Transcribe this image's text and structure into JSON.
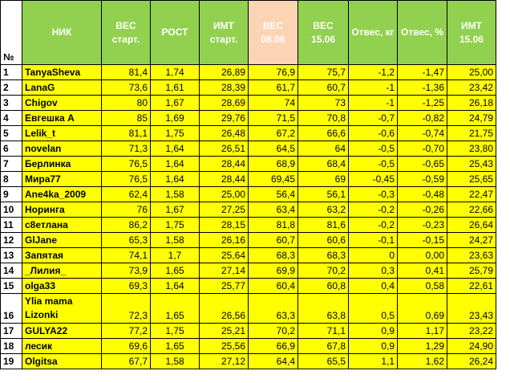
{
  "headers": {
    "num": "№",
    "nick": "НИК",
    "weight_start": "ВЕС старт.",
    "height": "РОСТ",
    "bmi_start": "ИМТ старт.",
    "weight_0806": "ВЕС 08.06",
    "weight_1506": "ВЕС 15.06",
    "loss_kg": "Отвес, кг",
    "loss_pct": "Отвес, %",
    "bmi_1506": "ИМТ 15.06"
  },
  "rows": [
    {
      "n": "1",
      "nick": "TanyaSheva",
      "ws": "81,4",
      "h": "1,74",
      "bmi0": "26,89",
      "w1": "76,9",
      "w2": "75,7",
      "kg": "-1,2",
      "pct": "-1,47",
      "bmi": "25,00"
    },
    {
      "n": "2",
      "nick": "LanaG",
      "ws": "73,6",
      "h": "1,61",
      "bmi0": "28,39",
      "w1": "61,7",
      "w2": "60,7",
      "kg": "-1",
      "pct": "-1,36",
      "bmi": "23,42"
    },
    {
      "n": "3",
      "nick": "Chigov",
      "ws": "80",
      "h": "1,67",
      "bmi0": "28,69",
      "w1": "74",
      "w2": "73",
      "kg": "-1",
      "pct": "-1,25",
      "bmi": "26,18"
    },
    {
      "n": "4",
      "nick": "Евгешка А",
      "ws": "85",
      "h": "1,69",
      "bmi0": "29,76",
      "w1": "71,5",
      "w2": "70,8",
      "kg": "-0,7",
      "pct": "-0,82",
      "bmi": "24,79"
    },
    {
      "n": "5",
      "nick": "Lelik_t",
      "ws": "81,1",
      "h": "1,75",
      "bmi0": "26,48",
      "w1": "67,2",
      "w2": "66,6",
      "kg": "-0,6",
      "pct": "-0,74",
      "bmi": "21,75"
    },
    {
      "n": "6",
      "nick": "novelan",
      "ws": "71,3",
      "h": "1,64",
      "bmi0": "26,51",
      "w1": "64,5",
      "w2": "64",
      "kg": "-0,5",
      "pct": "-0,70",
      "bmi": "23,80"
    },
    {
      "n": "7",
      "nick": "Берлинка",
      "ws": "76,5",
      "h": "1,64",
      "bmi0": "28,44",
      "w1": "68,9",
      "w2": "68,4",
      "kg": "-0,5",
      "pct": "-0,65",
      "bmi": "25,43"
    },
    {
      "n": "8",
      "nick": "Мира77",
      "ws": "76,5",
      "h": "1,64",
      "bmi0": "28,44",
      "w1": "69,45",
      "w2": "69",
      "kg": "-0,45",
      "pct": "-0,59",
      "bmi": "25,65"
    },
    {
      "n": "9",
      "nick": "Ane4ka_2009",
      "ws": "62,4",
      "h": "1,58",
      "bmi0": "25,00",
      "w1": "56,4",
      "w2": "56,1",
      "kg": "-0,3",
      "pct": "-0,48",
      "bmi": "22,47"
    },
    {
      "n": "10",
      "nick": "Норинга",
      "ws": "76",
      "h": "1,67",
      "bmi0": "27,25",
      "w1": "63,4",
      "w2": "63,2",
      "kg": "-0,2",
      "pct": "-0,26",
      "bmi": "22,66"
    },
    {
      "n": "11",
      "nick": "с8етлана",
      "ws": "86,2",
      "h": "1,75",
      "bmi0": "28,15",
      "w1": "81,8",
      "w2": "81,6",
      "kg": "-0,2",
      "pct": "-0,23",
      "bmi": "26,64"
    },
    {
      "n": "12",
      "nick": "GlJane",
      "ws": "65,3",
      "h": "1,58",
      "bmi0": "26,16",
      "w1": "60,7",
      "w2": "60,6",
      "kg": "-0,1",
      "pct": "-0,15",
      "bmi": "24,27"
    },
    {
      "n": "13",
      "nick": "Запятая",
      "ws": "74,1",
      "h": "1,7",
      "bmi0": "25,64",
      "w1": "68,3",
      "w2": "68,3",
      "kg": "0",
      "pct": "0,00",
      "bmi": "23,63"
    },
    {
      "n": "14",
      "nick": "_Лилия_",
      "ws": "73,9",
      "h": "1,65",
      "bmi0": "27,14",
      "w1": "69,9",
      "w2": "70,2",
      "kg": "0,3",
      "pct": "0,41",
      "bmi": "25,79"
    },
    {
      "n": "15",
      "nick": "olga33",
      "ws": "69,3",
      "h": "1,64",
      "bmi0": "25,77",
      "w1": "60,4",
      "w2": "60,8",
      "kg": "0,4",
      "pct": "0,58",
      "bmi": "22,61"
    },
    {
      "n": "16",
      "nick": "Ylia mama Lizonki",
      "ws": "72,3",
      "h": "1,65",
      "bmi0": "26,56",
      "w1": "63,3",
      "w2": "63,8",
      "kg": "0,5",
      "pct": "0,69",
      "bmi": "23,43",
      "tall": true
    },
    {
      "n": "17",
      "nick": "GULYA22",
      "ws": "77,2",
      "h": "1,75",
      "bmi0": "25,21",
      "w1": "70,2",
      "w2": "71,1",
      "kg": "0,9",
      "pct": "1,17",
      "bmi": "23,22"
    },
    {
      "n": "18",
      "nick": "лесик",
      "ws": "69,6",
      "h": "1,65",
      "bmi0": "25,56",
      "w1": "66,9",
      "w2": "67,8",
      "kg": "0,9",
      "pct": "1,29",
      "bmi": "24,90"
    },
    {
      "n": "19",
      "nick": "Olgitsa",
      "ws": "67,7",
      "h": "1,58",
      "bmi0": "27,12",
      "w1": "64,4",
      "w2": "65,5",
      "kg": "1,1",
      "pct": "1,62",
      "bmi": "26,24"
    }
  ],
  "colors": {
    "header_green": "#92d050",
    "header_peach": "#fbd4b4",
    "row_yellow": "#ffff00"
  }
}
